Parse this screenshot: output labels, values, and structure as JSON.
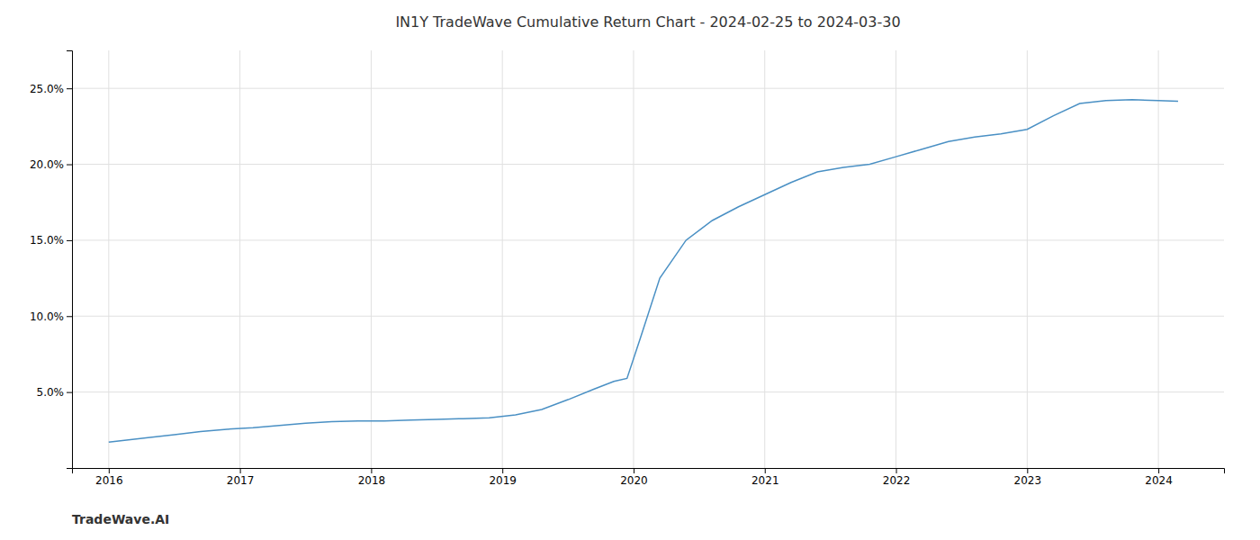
{
  "chart_data": {
    "type": "line",
    "title": "IN1Y TradeWave Cumulative Return Chart - 2024-02-25 to 2024-03-30",
    "annotations": [
      "TradeWave.AI"
    ],
    "color": "#4a90c4",
    "grid": true,
    "x": [
      2016.0,
      2016.15,
      2016.3,
      2016.5,
      2016.7,
      2016.9,
      2017.1,
      2017.3,
      2017.5,
      2017.7,
      2017.9,
      2018.1,
      2018.3,
      2018.5,
      2018.7,
      2018.9,
      2019.1,
      2019.3,
      2019.5,
      2019.7,
      2019.85,
      2019.95,
      2020.05,
      2020.2,
      2020.4,
      2020.6,
      2020.8,
      2021.0,
      2021.2,
      2021.4,
      2021.6,
      2021.8,
      2022.0,
      2022.2,
      2022.4,
      2022.6,
      2022.8,
      2023.0,
      2023.2,
      2023.4,
      2023.6,
      2023.8,
      2024.0,
      2024.15
    ],
    "values": [
      1.7,
      1.85,
      2.0,
      2.2,
      2.4,
      2.55,
      2.65,
      2.8,
      2.95,
      3.05,
      3.1,
      3.1,
      3.15,
      3.2,
      3.25,
      3.3,
      3.5,
      3.85,
      4.5,
      5.2,
      5.7,
      5.9,
      8.5,
      12.5,
      15.0,
      16.3,
      17.2,
      18.0,
      18.8,
      19.5,
      19.8,
      20.0,
      20.5,
      21.0,
      21.5,
      21.8,
      22.0,
      22.3,
      23.2,
      24.0,
      24.2,
      24.25,
      24.2,
      24.15
    ],
    "xlim": [
      2015.72,
      2024.5
    ],
    "ylim": [
      0,
      27.5
    ],
    "xticks": [
      2016,
      2017,
      2018,
      2019,
      2020,
      2021,
      2022,
      2023,
      2024
    ],
    "yticks": [
      {
        "value": 5.0,
        "label": "5.0%"
      },
      {
        "value": 10.0,
        "label": "10.0%"
      },
      {
        "value": 15.0,
        "label": "15.0%"
      },
      {
        "value": 20.0,
        "label": "20.0%"
      },
      {
        "value": 25.0,
        "label": "25.0%"
      }
    ]
  }
}
